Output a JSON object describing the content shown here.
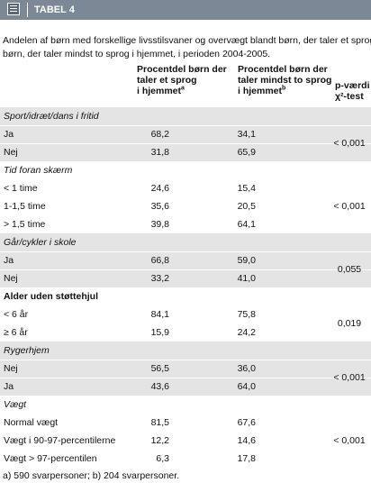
{
  "header": {
    "title": "TABEL 4"
  },
  "caption": [
    "Andelen af børn med forskellige livsstilsvaner og overvægt blandt børn, der taler et sprog, eller",
    "børn, der taler mindst to sprog i hjemmet, i perioden 2004-2005."
  ],
  "columns": [
    {
      "lines": [
        "Procentdel børn der",
        "taler et sprog",
        "i hjemmet"
      ],
      "note": "a"
    },
    {
      "lines": [
        "Procentdel børn der",
        "taler mindst to sprog",
        "i hjemmet"
      ],
      "note": "b"
    },
    {
      "lines": [
        "p-værdi",
        "χ²-test"
      ]
    }
  ],
  "sections": [
    {
      "title": "Sport/idræt/dans i fritid",
      "rows": [
        [
          "Ja",
          "68,2",
          "34,1"
        ],
        [
          "Nej",
          "31,8",
          "65,9"
        ]
      ],
      "p": "< 0,001"
    },
    {
      "title": "Tid foran skærm",
      "rows": [
        [
          "< 1 time",
          "24,6",
          "15,4"
        ],
        [
          "1-1,5 time",
          "35,6",
          "20,5"
        ],
        [
          "> 1,5 time",
          "39,8",
          "64,1"
        ]
      ],
      "p": "< 0,001"
    },
    {
      "title": "Går/cykler i skole",
      "rows": [
        [
          "Ja",
          "66,8",
          "59,0"
        ],
        [
          "Nej",
          "33,2",
          "41,0"
        ]
      ],
      "p": "0,055"
    },
    {
      "title": "Alder uden støttehjul",
      "rows": [
        [
          "< 6 år",
          "84,1",
          "75,8"
        ],
        [
          "≥ 6 år",
          "15,9",
          "24,2"
        ]
      ],
      "p": "0,019"
    },
    {
      "title": "Rygerhjem",
      "rows": [
        [
          "Nej",
          "56,5",
          "36,0"
        ],
        [
          "Ja",
          "43,6",
          "64,0"
        ]
      ],
      "p": "< 0,001"
    },
    {
      "title": "Vægt",
      "rows": [
        [
          "Normal vægt",
          "81,5",
          "67,6"
        ],
        [
          "Vægt i 90-97-percentilerne",
          "12,2",
          "14,6"
        ],
        [
          "Vægt > 97-percentilen",
          "6,3",
          "17,8"
        ]
      ],
      "p": "< 0,001"
    }
  ],
  "footnote": "a) 590 svarpersoner;   b) 204 svarpersoner."
}
